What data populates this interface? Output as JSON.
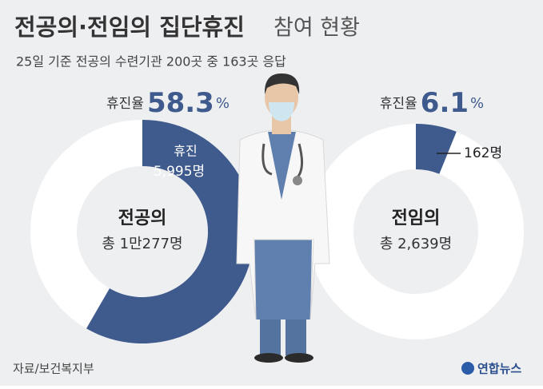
{
  "header": {
    "title": "전공의·전임의 집단휴진",
    "title_light": "참여 현황",
    "subtitle": "25일 기준 전공의 수련기관 200곳 중 163곳 응답"
  },
  "chart_data": [
    {
      "type": "donut",
      "name": "전공의",
      "total": 10277,
      "total_label": "총 1만277명",
      "rate_label": "휴진율",
      "rate": 58.3,
      "rate_unit": "%",
      "segment_label": "휴진",
      "values": [
        5995
      ],
      "value_labels": [
        "5,995명"
      ],
      "color": "#3f5a8c"
    },
    {
      "type": "donut",
      "name": "전임의",
      "total": 2639,
      "total_label": "총 2,639명",
      "rate_label": "휴진율",
      "rate": 6.1,
      "rate_unit": "%",
      "values": [
        162
      ],
      "value_labels": [
        "162명"
      ],
      "color": "#3f5a8c"
    }
  ],
  "footer": {
    "source": "자료/보건복지부",
    "logo": "연합뉴스"
  }
}
